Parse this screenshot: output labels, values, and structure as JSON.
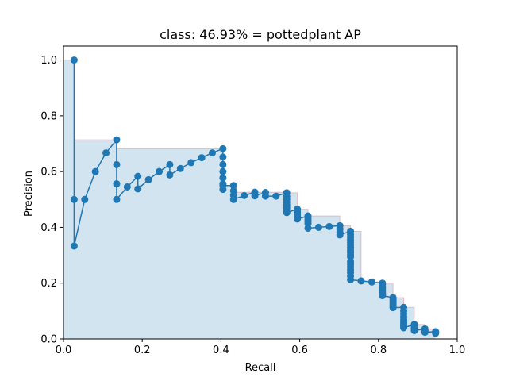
{
  "chart_data": {
    "type": "line",
    "title": "class: 46.93% = pottedplant AP",
    "xlabel": "Recall",
    "ylabel": "Precision",
    "xlim": [
      0.0,
      1.0
    ],
    "ylim": [
      0.0,
      1.05
    ],
    "xticks": [
      0.0,
      0.2,
      0.4,
      0.6,
      0.8,
      1.0
    ],
    "xtick_labels": [
      "0.0",
      "0.2",
      "0.4",
      "0.6",
      "0.8",
      "1.0"
    ],
    "yticks": [
      0.0,
      0.2,
      0.4,
      0.6,
      0.8,
      1.0
    ],
    "ytick_labels": [
      "0.0",
      "0.2",
      "0.4",
      "0.6",
      "0.8",
      "1.0"
    ],
    "grid": false,
    "colors": {
      "line": "#1f77b4",
      "fill": "#1f77b4",
      "envelope_edge": "#d62728"
    },
    "series": [
      {
        "x": [
          0.027,
          0.027,
          0.027,
          0.054,
          0.081,
          0.108,
          0.135,
          0.135,
          0.135,
          0.135,
          0.162,
          0.189,
          0.189,
          0.216,
          0.243,
          0.27,
          0.27,
          0.297,
          0.324,
          0.351,
          0.378,
          0.405,
          0.405,
          0.405,
          0.405,
          0.405,
          0.405,
          0.405,
          0.405,
          0.432,
          0.432,
          0.432,
          0.432,
          0.459,
          0.486,
          0.486,
          0.513,
          0.513,
          0.54,
          0.567,
          0.567,
          0.567,
          0.567,
          0.567,
          0.567,
          0.567,
          0.567,
          0.594,
          0.594,
          0.594,
          0.594,
          0.594,
          0.621,
          0.621,
          0.621,
          0.621,
          0.621,
          0.621,
          0.648,
          0.675,
          0.702,
          0.702,
          0.702,
          0.702,
          0.729,
          0.729,
          0.729,
          0.729,
          0.729,
          0.729,
          0.729,
          0.729,
          0.729,
          0.729,
          0.729,
          0.729,
          0.729,
          0.729,
          0.729,
          0.729,
          0.729,
          0.729,
          0.756,
          0.783,
          0.81,
          0.81,
          0.81,
          0.81,
          0.81,
          0.81,
          0.81,
          0.81,
          0.837,
          0.837,
          0.837,
          0.837,
          0.837,
          0.837,
          0.837,
          0.864,
          0.864,
          0.864,
          0.864,
          0.864,
          0.864,
          0.864,
          0.864,
          0.864,
          0.864,
          0.891,
          0.891,
          0.891,
          0.891,
          0.891,
          0.918,
          0.918,
          0.918,
          0.918,
          0.945,
          0.945,
          0.945,
          0.945
        ],
        "y": [
          1.0,
          0.5,
          0.333,
          0.5,
          0.6,
          0.667,
          0.714,
          0.625,
          0.556,
          0.5,
          0.545,
          0.583,
          0.538,
          0.571,
          0.6,
          0.625,
          0.588,
          0.611,
          0.632,
          0.65,
          0.667,
          0.682,
          0.652,
          0.625,
          0.6,
          0.577,
          0.556,
          0.536,
          0.55,
          0.55,
          0.531,
          0.515,
          0.5,
          0.514,
          0.526,
          0.513,
          0.525,
          0.512,
          0.512,
          0.524,
          0.511,
          0.5,
          0.49,
          0.48,
          0.471,
          0.462,
          0.453,
          0.465,
          0.455,
          0.446,
          0.438,
          0.43,
          0.441,
          0.433,
          0.426,
          0.419,
          0.413,
          0.397,
          0.4,
          0.403,
          0.406,
          0.394,
          0.383,
          0.373,
          0.386,
          0.375,
          0.365,
          0.355,
          0.346,
          0.336,
          0.327,
          0.318,
          0.31,
          0.302,
          0.294,
          0.276,
          0.268,
          0.258,
          0.248,
          0.238,
          0.225,
          0.212,
          0.208,
          0.204,
          0.2,
          0.194,
          0.186,
          0.18,
          0.173,
          0.166,
          0.16,
          0.155,
          0.148,
          0.142,
          0.136,
          0.13,
          0.124,
          0.118,
          0.112,
          0.113,
          0.1,
          0.09,
          0.08,
          0.07,
          0.062,
          0.055,
          0.05,
          0.045,
          0.04,
          0.052,
          0.046,
          0.04,
          0.035,
          0.03,
          0.036,
          0.032,
          0.028,
          0.024,
          0.026,
          0.024,
          0.022,
          0.02
        ]
      }
    ],
    "envelope": {
      "x": [
        0.0,
        0.027,
        0.027,
        0.135,
        0.135,
        0.405,
        0.405,
        0.432,
        0.432,
        0.567,
        0.567,
        0.594,
        0.594,
        0.621,
        0.621,
        0.702,
        0.702,
        0.729,
        0.729,
        0.756,
        0.756,
        0.783,
        0.783,
        0.81,
        0.81,
        0.837,
        0.837,
        0.864,
        0.864,
        0.891,
        0.891,
        0.918,
        0.918,
        0.945,
        0.945
      ],
      "y": [
        1.0,
        1.0,
        0.714,
        0.714,
        0.682,
        0.682,
        0.55,
        0.55,
        0.526,
        0.526,
        0.524,
        0.524,
        0.465,
        0.465,
        0.441,
        0.441,
        0.406,
        0.406,
        0.386,
        0.386,
        0.208,
        0.208,
        0.204,
        0.204,
        0.2,
        0.2,
        0.148,
        0.148,
        0.113,
        0.113,
        0.052,
        0.052,
        0.036,
        0.036,
        0.026
      ]
    }
  }
}
